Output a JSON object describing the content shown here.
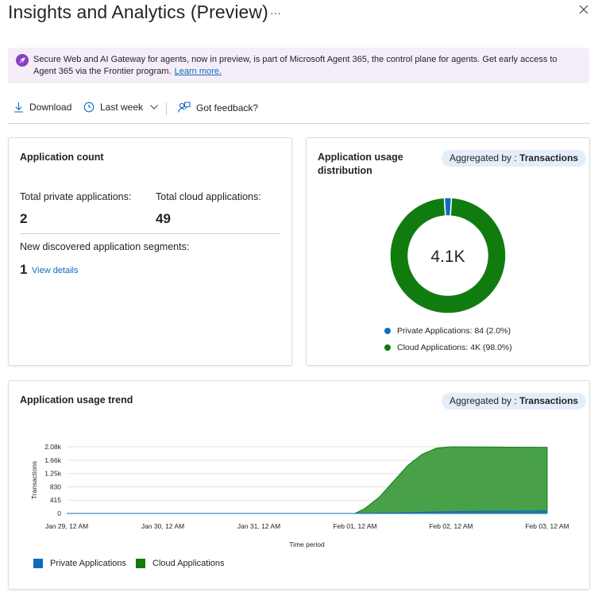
{
  "page": {
    "title": "Insights and Analytics (Preview)",
    "more_label": "···",
    "close_icon": "close-icon"
  },
  "banner": {
    "icon": "rocket-icon",
    "text": "Secure Web and AI Gateway for agents, now in preview, is part of Microsoft Agent 365, the control plane for agents. Get early access to Agent 365 via the Frontier program.",
    "link": "Learn more."
  },
  "toolbar": {
    "download_label": "Download",
    "timerange_label": "Last week",
    "feedback_label": "Got feedback?"
  },
  "app_count": {
    "title": "Application count",
    "private_label": "Total private applications:",
    "private_value": "2",
    "cloud_label": "Total cloud applications:",
    "cloud_value": "49",
    "segments_label": "New discovered application segments:",
    "segments_value": "1",
    "view_details": "View details"
  },
  "distribution": {
    "title": "Application usage distribution",
    "aggregated_prefix": "Aggregated by : ",
    "aggregated_value": "Transactions",
    "center_value": "4.1K",
    "legend_private": "Private Applications: 84 (2.0%)",
    "legend_cloud": "Cloud Applications: 4K (98.0%)"
  },
  "trend": {
    "title": "Application usage trend",
    "aggregated_prefix": "Aggregated by : ",
    "aggregated_value": "Transactions",
    "legend_private": "Private Applications",
    "legend_cloud": "Cloud Applications"
  },
  "colors": {
    "private": "#0f6cbd",
    "cloud": "#107c10",
    "cloud_area": "#3e9c3e",
    "accent": "#0f6cbd",
    "banner_bg": "#f5eef9"
  },
  "chart_data": [
    {
      "type": "pie",
      "title": "Application usage distribution",
      "center_label": "4.1K",
      "slices": [
        {
          "name": "Private Applications",
          "value": 84,
          "percent": 2.0
        },
        {
          "name": "Cloud Applications",
          "value": 4000,
          "percent": 98.0
        }
      ]
    },
    {
      "type": "area",
      "title": "Application usage trend",
      "xlabel": "Time period",
      "ylabel": "Transactions",
      "ylim": [
        0,
        2080
      ],
      "yticks": [
        "0",
        "415",
        "830",
        "1.25k",
        "1.66k",
        "2.08k"
      ],
      "ytick_values": [
        0,
        415,
        830,
        1245,
        1660,
        2080
      ],
      "xticks": [
        "Jan 29, 12 AM",
        "Jan 30, 12 AM",
        "Jan 31, 12 AM",
        "Feb 01, 12 AM",
        "Feb 02, 12 AM",
        "Feb 03, 12 AM"
      ],
      "xtick_values": [
        0,
        1,
        2,
        3,
        4,
        5
      ],
      "grid": true,
      "legend_placement": "bottom-left",
      "series": [
        {
          "name": "Private Applications",
          "x": [
            0,
            1,
            2,
            3,
            3.2,
            3.5,
            3.8,
            4,
            4.5,
            5
          ],
          "values": [
            0,
            0,
            0,
            0,
            5,
            20,
            45,
            60,
            75,
            84
          ]
        },
        {
          "name": "Cloud Applications",
          "x": [
            0,
            1,
            2,
            3,
            3.1,
            3.25,
            3.4,
            3.55,
            3.7,
            3.85,
            4,
            4.5,
            5
          ],
          "values": [
            0,
            0,
            0,
            0,
            150,
            500,
            1000,
            1500,
            1850,
            2040,
            2080,
            2070,
            2060
          ]
        }
      ]
    }
  ]
}
